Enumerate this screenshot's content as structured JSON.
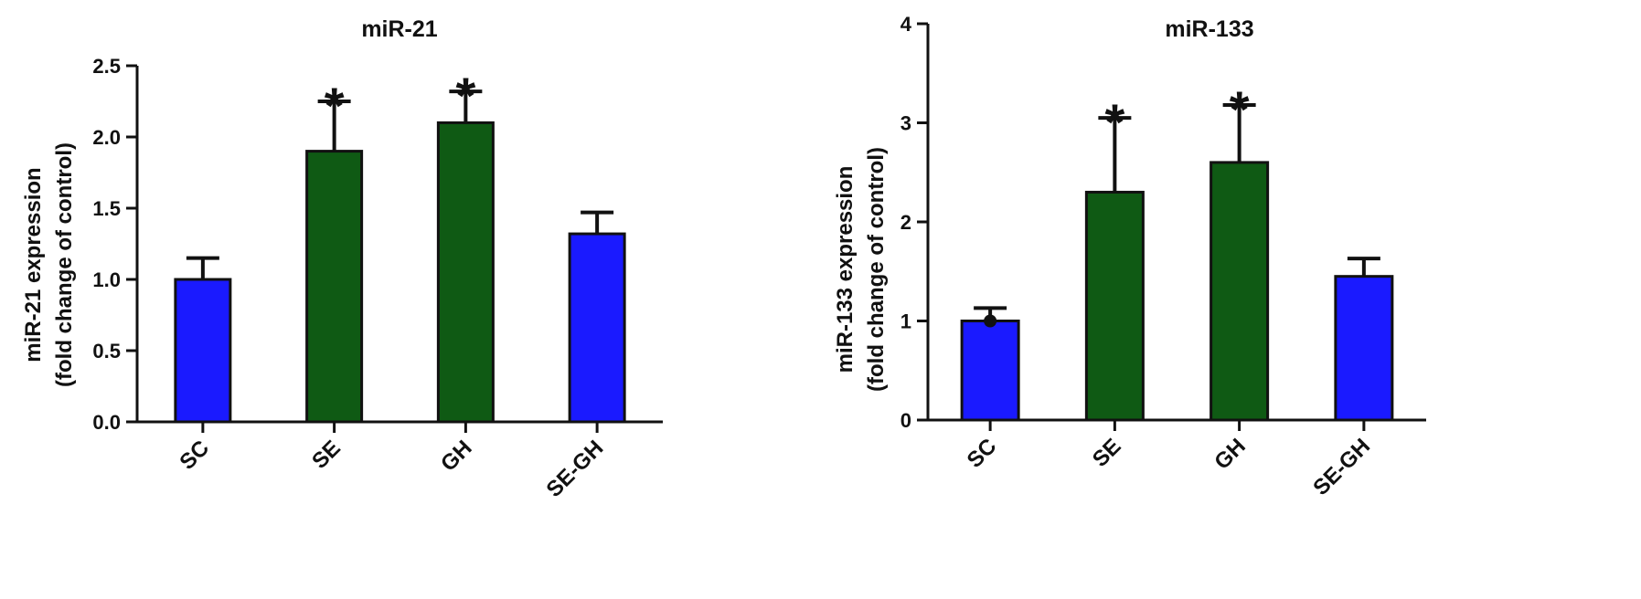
{
  "chart_data": [
    {
      "type": "bar",
      "title": "miR-21",
      "ylabel_lines": [
        "miR-21 expression",
        "(fold change of control)"
      ],
      "xlabel": "",
      "categories": [
        "SC",
        "SE",
        "GH",
        "SE-GH"
      ],
      "values": [
        1.0,
        1.9,
        2.1,
        1.32
      ],
      "errors": [
        0.15,
        0.35,
        0.22,
        0.15
      ],
      "significant": [
        "",
        "*",
        "*",
        ""
      ],
      "bar_colors": [
        "#1a1aff",
        "#0f5a14",
        "#0f5a14",
        "#1a1aff"
      ],
      "ylim": [
        0,
        2.5
      ],
      "yticks": [
        "0.0",
        "0.5",
        "1.0",
        "1.5",
        "2.0",
        "2.5"
      ],
      "grid": false,
      "legend": "none"
    },
    {
      "type": "bar",
      "title": "miR-133",
      "ylabel_lines": [
        "miR-133 expression",
        "(fold change of control)"
      ],
      "xlabel": "",
      "categories": [
        "SC",
        "SE",
        "GH",
        "SE-GH"
      ],
      "values": [
        1.0,
        2.3,
        2.6,
        1.45
      ],
      "errors": [
        0.13,
        0.75,
        0.58,
        0.18
      ],
      "significant": [
        "",
        "*",
        "*",
        ""
      ],
      "bar_colors": [
        "#1a1aff",
        "#0f5a14",
        "#0f5a14",
        "#1a1aff"
      ],
      "ylim": [
        0,
        4
      ],
      "yticks": [
        "0",
        "1",
        "2",
        "3",
        "4"
      ],
      "grid": false,
      "legend": "none"
    }
  ]
}
